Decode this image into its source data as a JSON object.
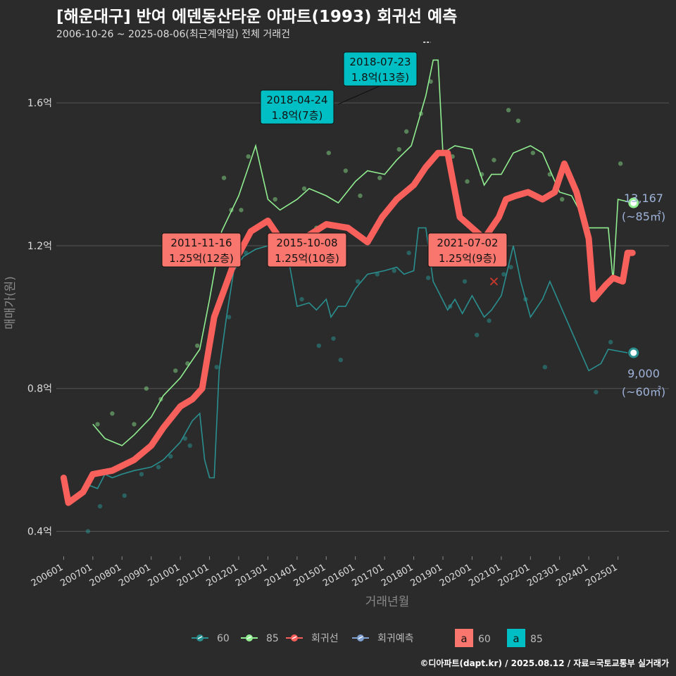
{
  "title": "[해운대구] 반여 에덴동산타운 아파트(1993) 회귀선 예측",
  "subtitle": "2006-10-26 ~ 2025-08-06(최근계약일) 전체 거래건",
  "caption": "©디아파트(dapt.kr) / 2025.08.12 / 자료=국토교통부 실거래가",
  "colors": {
    "background": "#2b2b2b",
    "grid": "#555555",
    "series_60": "#2a8f8f",
    "series_85": "#90ee90",
    "regression": "#f8605c",
    "forecast": "#7f9fd0",
    "label_60_fill": "#f8766d",
    "label_85_fill": "#00bfc4",
    "annotation_text": "#9fb3d9"
  },
  "chart_data": {
    "type": "line",
    "xlabel": "거래년월",
    "ylabel": "매매가(원)",
    "x_range": [
      "2005-10-01",
      "2026-10-01"
    ],
    "y_range": [
      0.33,
      1.77
    ],
    "grid": true,
    "legend_placement": "bottom",
    "y_ticks": [
      {
        "value": 0.4,
        "label": "0.4억"
      },
      {
        "value": 0.8,
        "label": "0.8억"
      },
      {
        "value": 1.2,
        "label": "1.2억"
      },
      {
        "value": 1.6,
        "label": "1.6억"
      }
    ],
    "x_ticks": [
      {
        "date": "2006-01-01",
        "label": "200601"
      },
      {
        "date": "2007-01-01",
        "label": "200701"
      },
      {
        "date": "2008-01-01",
        "label": "200801"
      },
      {
        "date": "2009-01-01",
        "label": "200901"
      },
      {
        "date": "2010-01-01",
        "label": "201001"
      },
      {
        "date": "2011-01-01",
        "label": "201101"
      },
      {
        "date": "2012-01-01",
        "label": "201201"
      },
      {
        "date": "2013-01-01",
        "label": "201301"
      },
      {
        "date": "2014-01-01",
        "label": "201401"
      },
      {
        "date": "2015-01-01",
        "label": "201501"
      },
      {
        "date": "2016-01-01",
        "label": "201601"
      },
      {
        "date": "2017-01-01",
        "label": "201701"
      },
      {
        "date": "2018-01-01",
        "label": "201801"
      },
      {
        "date": "2019-01-01",
        "label": "201901"
      },
      {
        "date": "2020-01-01",
        "label": "202001"
      },
      {
        "date": "2021-01-01",
        "label": "202101"
      },
      {
        "date": "2022-01-01",
        "label": "202201"
      },
      {
        "date": "2023-01-01",
        "label": "202301"
      },
      {
        "date": "2024-01-01",
        "label": "202401"
      },
      {
        "date": "2025-01-01",
        "label": "202501"
      }
    ],
    "series": [
      {
        "name": "60",
        "kind": "line",
        "points": [
          [
            "2006-11-01",
            0.53
          ],
          [
            "2007-03-01",
            0.52
          ],
          [
            "2007-06-01",
            0.56
          ],
          [
            "2007-09-01",
            0.55
          ],
          [
            "2008-01-01",
            0.56
          ],
          [
            "2008-06-01",
            0.57
          ],
          [
            "2009-01-01",
            0.58
          ],
          [
            "2009-06-01",
            0.6
          ],
          [
            "2010-01-01",
            0.65
          ],
          [
            "2010-06-01",
            0.71
          ],
          [
            "2010-09-01",
            0.73
          ],
          [
            "2010-11-01",
            0.6
          ],
          [
            "2011-01-01",
            0.55
          ],
          [
            "2011-03-01",
            0.55
          ],
          [
            "2011-05-01",
            0.85
          ],
          [
            "2011-08-01",
            1.0
          ],
          [
            "2011-11-01",
            1.13
          ],
          [
            "2012-03-01",
            1.17
          ],
          [
            "2012-08-01",
            1.19
          ],
          [
            "2013-01-01",
            1.2
          ],
          [
            "2013-05-01",
            1.2
          ],
          [
            "2013-09-01",
            1.18
          ],
          [
            "2014-01-01",
            1.03
          ],
          [
            "2014-06-01",
            1.04
          ],
          [
            "2014-09-01",
            1.02
          ],
          [
            "2015-01-01",
            1.05
          ],
          [
            "2015-03-01",
            1.0
          ],
          [
            "2015-06-01",
            1.03
          ],
          [
            "2015-09-01",
            1.03
          ],
          [
            "2016-01-01",
            1.08
          ],
          [
            "2016-06-01",
            1.12
          ],
          [
            "2017-01-01",
            1.13
          ],
          [
            "2017-06-01",
            1.14
          ],
          [
            "2017-09-01",
            1.12
          ],
          [
            "2018-01-01",
            1.13
          ],
          [
            "2018-03-01",
            1.25
          ],
          [
            "2018-06-01",
            1.25
          ],
          [
            "2018-09-01",
            1.1
          ],
          [
            "2018-12-01",
            1.06
          ],
          [
            "2019-03-01",
            1.02
          ],
          [
            "2019-06-01",
            1.05
          ],
          [
            "2019-09-01",
            1.01
          ],
          [
            "2020-01-01",
            1.06
          ],
          [
            "2020-06-01",
            1.0
          ],
          [
            "2020-09-01",
            1.02
          ],
          [
            "2021-01-01",
            1.06
          ],
          [
            "2021-06-01",
            1.2
          ],
          [
            "2021-09-01",
            1.1
          ],
          [
            "2022-01-01",
            1.0
          ],
          [
            "2022-06-01",
            1.05
          ],
          [
            "2022-09-01",
            1.1
          ],
          [
            "2024-01-01",
            0.85
          ],
          [
            "2024-06-01",
            0.87
          ],
          [
            "2024-09-01",
            0.91
          ],
          [
            "2025-05-01",
            0.9
          ]
        ]
      },
      {
        "name": "85",
        "kind": "line",
        "points": [
          [
            "2007-01-01",
            0.7
          ],
          [
            "2007-06-01",
            0.66
          ],
          [
            "2008-01-01",
            0.64
          ],
          [
            "2008-06-01",
            0.67
          ],
          [
            "2009-01-01",
            0.72
          ],
          [
            "2009-06-01",
            0.78
          ],
          [
            "2010-01-01",
            0.83
          ],
          [
            "2010-06-01",
            0.88
          ],
          [
            "2010-09-01",
            0.91
          ],
          [
            "2011-01-01",
            1.05
          ],
          [
            "2011-06-01",
            1.24
          ],
          [
            "2012-01-01",
            1.34
          ],
          [
            "2012-08-01",
            1.48
          ],
          [
            "2013-01-01",
            1.33
          ],
          [
            "2013-06-01",
            1.3
          ],
          [
            "2014-01-01",
            1.33
          ],
          [
            "2014-06-01",
            1.36
          ],
          [
            "2015-01-01",
            1.34
          ],
          [
            "2015-06-01",
            1.32
          ],
          [
            "2016-01-01",
            1.38
          ],
          [
            "2016-06-01",
            1.41
          ],
          [
            "2017-01-01",
            1.4
          ],
          [
            "2017-06-01",
            1.44
          ],
          [
            "2017-12-01",
            1.48
          ],
          [
            "2018-06-01",
            1.62
          ],
          [
            "2018-09-01",
            1.72
          ],
          [
            "2018-11-01",
            1.72
          ],
          [
            "2019-01-01",
            1.46
          ],
          [
            "2019-06-01",
            1.48
          ],
          [
            "2020-01-01",
            1.47
          ],
          [
            "2020-06-01",
            1.37
          ],
          [
            "2020-09-01",
            1.4
          ],
          [
            "2021-01-01",
            1.4
          ],
          [
            "2021-06-01",
            1.46
          ],
          [
            "2022-01-01",
            1.48
          ],
          [
            "2022-06-01",
            1.46
          ],
          [
            "2023-01-01",
            1.35
          ],
          [
            "2023-06-01",
            1.34
          ],
          [
            "2024-01-01",
            1.25
          ],
          [
            "2024-06-01",
            1.25
          ],
          [
            "2024-09-01",
            1.25
          ],
          [
            "2024-11-01",
            1.1
          ],
          [
            "2025-01-01",
            1.33
          ],
          [
            "2025-07-01",
            1.32
          ]
        ]
      },
      {
        "name": "회귀선",
        "kind": "thick",
        "points": [
          [
            "2006-01-01",
            0.55
          ],
          [
            "2006-03-01",
            0.48
          ],
          [
            "2006-09-01",
            0.51
          ],
          [
            "2007-01-01",
            0.56
          ],
          [
            "2007-09-01",
            0.57
          ],
          [
            "2008-06-01",
            0.6
          ],
          [
            "2009-01-01",
            0.64
          ],
          [
            "2009-06-01",
            0.69
          ],
          [
            "2010-01-01",
            0.75
          ],
          [
            "2010-06-01",
            0.77
          ],
          [
            "2010-10-01",
            0.8
          ],
          [
            "2011-03-01",
            1.0
          ],
          [
            "2011-11-01",
            1.15
          ],
          [
            "2012-06-01",
            1.24
          ],
          [
            "2013-01-01",
            1.27
          ],
          [
            "2013-06-01",
            1.22
          ],
          [
            "2013-12-01",
            1.2
          ],
          [
            "2014-06-01",
            1.23
          ],
          [
            "2015-01-01",
            1.26
          ],
          [
            "2015-10-01",
            1.25
          ],
          [
            "2016-06-01",
            1.21
          ],
          [
            "2016-12-01",
            1.28
          ],
          [
            "2017-06-01",
            1.33
          ],
          [
            "2018-01-01",
            1.37
          ],
          [
            "2018-06-01",
            1.42
          ],
          [
            "2018-11-01",
            1.46
          ],
          [
            "2019-03-01",
            1.46
          ],
          [
            "2019-08-01",
            1.28
          ],
          [
            "2020-06-01",
            1.22
          ],
          [
            "2020-12-01",
            1.28
          ],
          [
            "2021-03-01",
            1.33
          ],
          [
            "2021-07-01",
            1.34
          ],
          [
            "2021-12-01",
            1.35
          ],
          [
            "2022-06-01",
            1.33
          ],
          [
            "2022-11-01",
            1.35
          ],
          [
            "2023-03-01",
            1.43
          ],
          [
            "2023-08-01",
            1.35
          ],
          [
            "2024-01-01",
            1.22
          ],
          [
            "2024-03-01",
            1.05
          ],
          [
            "2024-08-01",
            1.09
          ],
          [
            "2024-11-01",
            1.11
          ],
          [
            "2025-03-01",
            1.1
          ],
          [
            "2025-05-01",
            1.18
          ],
          [
            "2025-07-01",
            1.18
          ]
        ]
      },
      {
        "name": "회귀예측",
        "kind": "forecast",
        "points": [
          [
            "2018-05-01",
            1.77
          ],
          [
            "2018-08-01",
            1.77
          ]
        ]
      }
    ],
    "scatter_60": [
      [
        "2006-11-01",
        0.4
      ],
      [
        "2007-04-01",
        0.47
      ],
      [
        "2008-02-01",
        0.5
      ],
      [
        "2008-09-01",
        0.56
      ],
      [
        "2009-04-01",
        0.58
      ],
      [
        "2009-09-01",
        0.61
      ],
      [
        "2010-03-01",
        0.66
      ],
      [
        "2010-05-01",
        0.64
      ],
      [
        "2011-04-01",
        0.86
      ],
      [
        "2011-09-01",
        1.0
      ],
      [
        "2012-04-01",
        1.18
      ],
      [
        "2013-07-01",
        1.17
      ],
      [
        "2014-03-01",
        1.05
      ],
      [
        "2014-10-01",
        0.92
      ],
      [
        "2015-04-01",
        0.94
      ],
      [
        "2015-07-01",
        0.88
      ],
      [
        "2016-02-01",
        1.1
      ],
      [
        "2016-10-01",
        1.12
      ],
      [
        "2017-05-01",
        1.13
      ],
      [
        "2017-11-01",
        1.18
      ],
      [
        "2018-07-01",
        1.11
      ],
      [
        "2019-04-01",
        1.03
      ],
      [
        "2019-10-01",
        1.1
      ],
      [
        "2020-03-01",
        0.95
      ],
      [
        "2020-08-01",
        0.99
      ],
      [
        "2021-02-01",
        1.12
      ],
      [
        "2021-05-01",
        1.14
      ],
      [
        "2021-11-01",
        1.05
      ],
      [
        "2022-07-01",
        0.86
      ],
      [
        "2024-04-01",
        0.79
      ],
      [
        "2024-10-01",
        0.93
      ]
    ],
    "scatter_85": [
      [
        "2007-03-01",
        0.7
      ],
      [
        "2007-09-01",
        0.73
      ],
      [
        "2008-06-01",
        0.7
      ],
      [
        "2008-11-01",
        0.8
      ],
      [
        "2009-05-01",
        0.77
      ],
      [
        "2009-11-01",
        0.85
      ],
      [
        "2010-04-01",
        0.87
      ],
      [
        "2010-08-01",
        0.92
      ],
      [
        "2011-07-01",
        1.39
      ],
      [
        "2011-10-01",
        1.3
      ],
      [
        "2012-02-01",
        1.3
      ],
      [
        "2012-05-01",
        1.45
      ],
      [
        "2013-04-01",
        1.33
      ],
      [
        "2014-04-01",
        1.36
      ],
      [
        "2014-09-01",
        1.25
      ],
      [
        "2015-02-01",
        1.46
      ],
      [
        "2015-09-01",
        1.41
      ],
      [
        "2016-03-01",
        1.34
      ],
      [
        "2016-11-01",
        1.39
      ],
      [
        "2017-07-01",
        1.47
      ],
      [
        "2017-10-01",
        1.52
      ],
      [
        "2018-04-01",
        1.57
      ],
      [
        "2018-08-01",
        1.66
      ],
      [
        "2019-05-01",
        1.45
      ],
      [
        "2019-11-01",
        1.38
      ],
      [
        "2020-05-01",
        1.4
      ],
      [
        "2020-10-01",
        1.44
      ],
      [
        "2021-04-01",
        1.58
      ],
      [
        "2021-08-01",
        1.55
      ],
      [
        "2022-02-01",
        1.46
      ],
      [
        "2022-09-01",
        1.4
      ],
      [
        "2023-02-01",
        1.33
      ],
      [
        "2023-09-01",
        1.32
      ],
      [
        "2025-02-01",
        1.43
      ]
    ],
    "end_points": [
      {
        "series": "85",
        "date": "2025-07-15",
        "value": 1.32
      },
      {
        "series": "60",
        "date": "2025-07-15",
        "value": 0.9
      }
    ],
    "cross_marker": {
      "date": "2020-10-01",
      "value": 1.1
    },
    "annotations": [
      {
        "date": "2011-11-16",
        "value": 1.25,
        "fill": "60",
        "line1": "2011-11-16",
        "line2": "1.25억(12층)"
      },
      {
        "date": "2015-10-08",
        "value": 1.25,
        "fill": "60",
        "line1": "2015-10-08",
        "line2": "1.25억(10층)"
      },
      {
        "date": "2021-07-02",
        "value": 1.25,
        "fill": "60",
        "line1": "2021-07-02",
        "line2": "1.25억(9층)"
      },
      {
        "date": "2018-04-24",
        "value": 1.8,
        "fill": "85",
        "line1": "2018-04-24",
        "line2": "1.8억(7층)"
      },
      {
        "date": "2018-07-23",
        "value": 1.8,
        "fill": "85",
        "line1": "2018-07-23",
        "line2": "1.8억(13층)"
      }
    ],
    "end_labels": [
      {
        "line1": "13,167",
        "line2": "(~85㎡)"
      },
      {
        "line1": "9,000",
        "line2": "(~60㎡)"
      }
    ],
    "legend": {
      "items": [
        "60",
        "85",
        "회귀선",
        "회귀예측"
      ],
      "label_items": [
        {
          "glyph": "a",
          "text": "60"
        },
        {
          "glyph": "a",
          "text": "85"
        }
      ]
    }
  }
}
